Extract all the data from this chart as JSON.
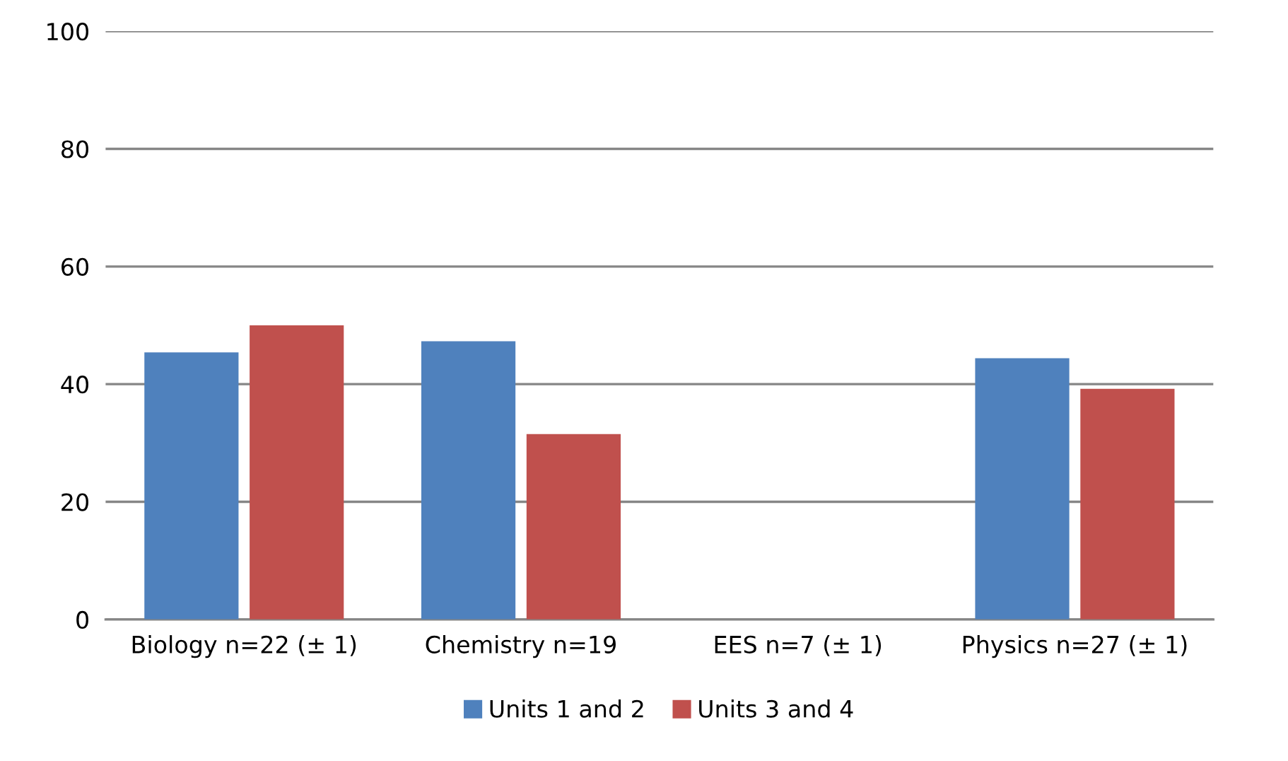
{
  "chart_data": {
    "type": "bar",
    "categories": [
      "Biology n=22 (± 1)",
      "Chemistry n=19",
      "EES n=7 (± 1)",
      "Physics n=27 (± 1)"
    ],
    "series": [
      {
        "name": "Units 1 and 2",
        "color": "#4f81bd",
        "values": [
          45.4,
          47.3,
          0,
          44.4
        ]
      },
      {
        "name": "Units 3 and 4",
        "color": "#c0504d",
        "values": [
          50.0,
          31.5,
          0,
          39.2
        ]
      }
    ],
    "ylim": [
      0,
      100
    ],
    "yticks": [
      0,
      20,
      40,
      60,
      80,
      100
    ],
    "grid": "y",
    "legend": "bottom"
  }
}
